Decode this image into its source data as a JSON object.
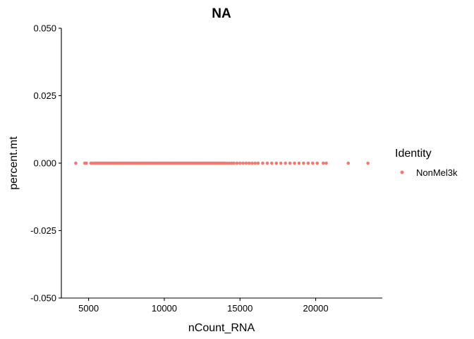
{
  "chart_data": {
    "type": "scatter",
    "title": "NA",
    "xlabel": "nCount_RNA",
    "ylabel": "percent.mt",
    "xlim": [
      3200,
      24400
    ],
    "ylim": [
      -0.05,
      0.05
    ],
    "x_ticks": [
      5000,
      10000,
      15000,
      20000
    ],
    "x_tick_labels": [
      "5000",
      "10000",
      "15000",
      "20000"
    ],
    "y_ticks": [
      -0.05,
      -0.025,
      0,
      0.025,
      0.05
    ],
    "y_tick_labels": [
      "-0.050",
      "-0.025",
      "0.000",
      "0.025",
      "0.050"
    ],
    "grid": false,
    "legend": {
      "position": "right",
      "title": "Identity",
      "entries": [
        {
          "label": "NonMel3k",
          "color": "#F8766D"
        }
      ]
    },
    "series": [
      {
        "name": "NonMel3k",
        "color": "#F8766D",
        "x": [
          4150,
          4750,
          4850,
          5150,
          5250,
          5400,
          5500,
          5600,
          5700,
          5800,
          5900,
          6000,
          6100,
          6200,
          6300,
          6400,
          6500,
          6600,
          6700,
          6800,
          6900,
          7000,
          7100,
          7200,
          7300,
          7400,
          7500,
          7600,
          7700,
          7800,
          7900,
          8000,
          8100,
          8200,
          8300,
          8400,
          8500,
          8600,
          8700,
          8800,
          8900,
          9000,
          9100,
          9200,
          9300,
          9400,
          9500,
          9600,
          9700,
          9800,
          9900,
          10000,
          10100,
          10200,
          10300,
          10400,
          10500,
          10600,
          10700,
          10800,
          10900,
          11000,
          11100,
          11200,
          11300,
          11400,
          11500,
          11600,
          11700,
          11800,
          11900,
          12000,
          12100,
          12200,
          12300,
          12400,
          12500,
          12600,
          12700,
          12800,
          12900,
          13000,
          13100,
          13200,
          13300,
          13400,
          13500,
          13600,
          13700,
          13800,
          13900,
          14000,
          14150,
          14300,
          14450,
          14600,
          14800,
          15000,
          15200,
          15400,
          15600,
          15800,
          16000,
          16200,
          16500,
          16800,
          17100,
          17400,
          17700,
          18000,
          18300,
          18600,
          18900,
          19200,
          19500,
          19800,
          20100,
          20500,
          20700,
          22150,
          23450
        ],
        "y": [
          0,
          0,
          0,
          0,
          0,
          0,
          0,
          0,
          0,
          0,
          0,
          0,
          0,
          0,
          0,
          0,
          0,
          0,
          0,
          0,
          0,
          0,
          0,
          0,
          0,
          0,
          0,
          0,
          0,
          0,
          0,
          0,
          0,
          0,
          0,
          0,
          0,
          0,
          0,
          0,
          0,
          0,
          0,
          0,
          0,
          0,
          0,
          0,
          0,
          0,
          0,
          0,
          0,
          0,
          0,
          0,
          0,
          0,
          0,
          0,
          0,
          0,
          0,
          0,
          0,
          0,
          0,
          0,
          0,
          0,
          0,
          0,
          0,
          0,
          0,
          0,
          0,
          0,
          0,
          0,
          0,
          0,
          0,
          0,
          0,
          0,
          0,
          0,
          0,
          0,
          0,
          0,
          0,
          0,
          0,
          0,
          0,
          0,
          0,
          0,
          0,
          0,
          0,
          0,
          0,
          0,
          0,
          0,
          0,
          0,
          0,
          0,
          0,
          0,
          0,
          0,
          0,
          0,
          0,
          0,
          0
        ]
      }
    ]
  }
}
